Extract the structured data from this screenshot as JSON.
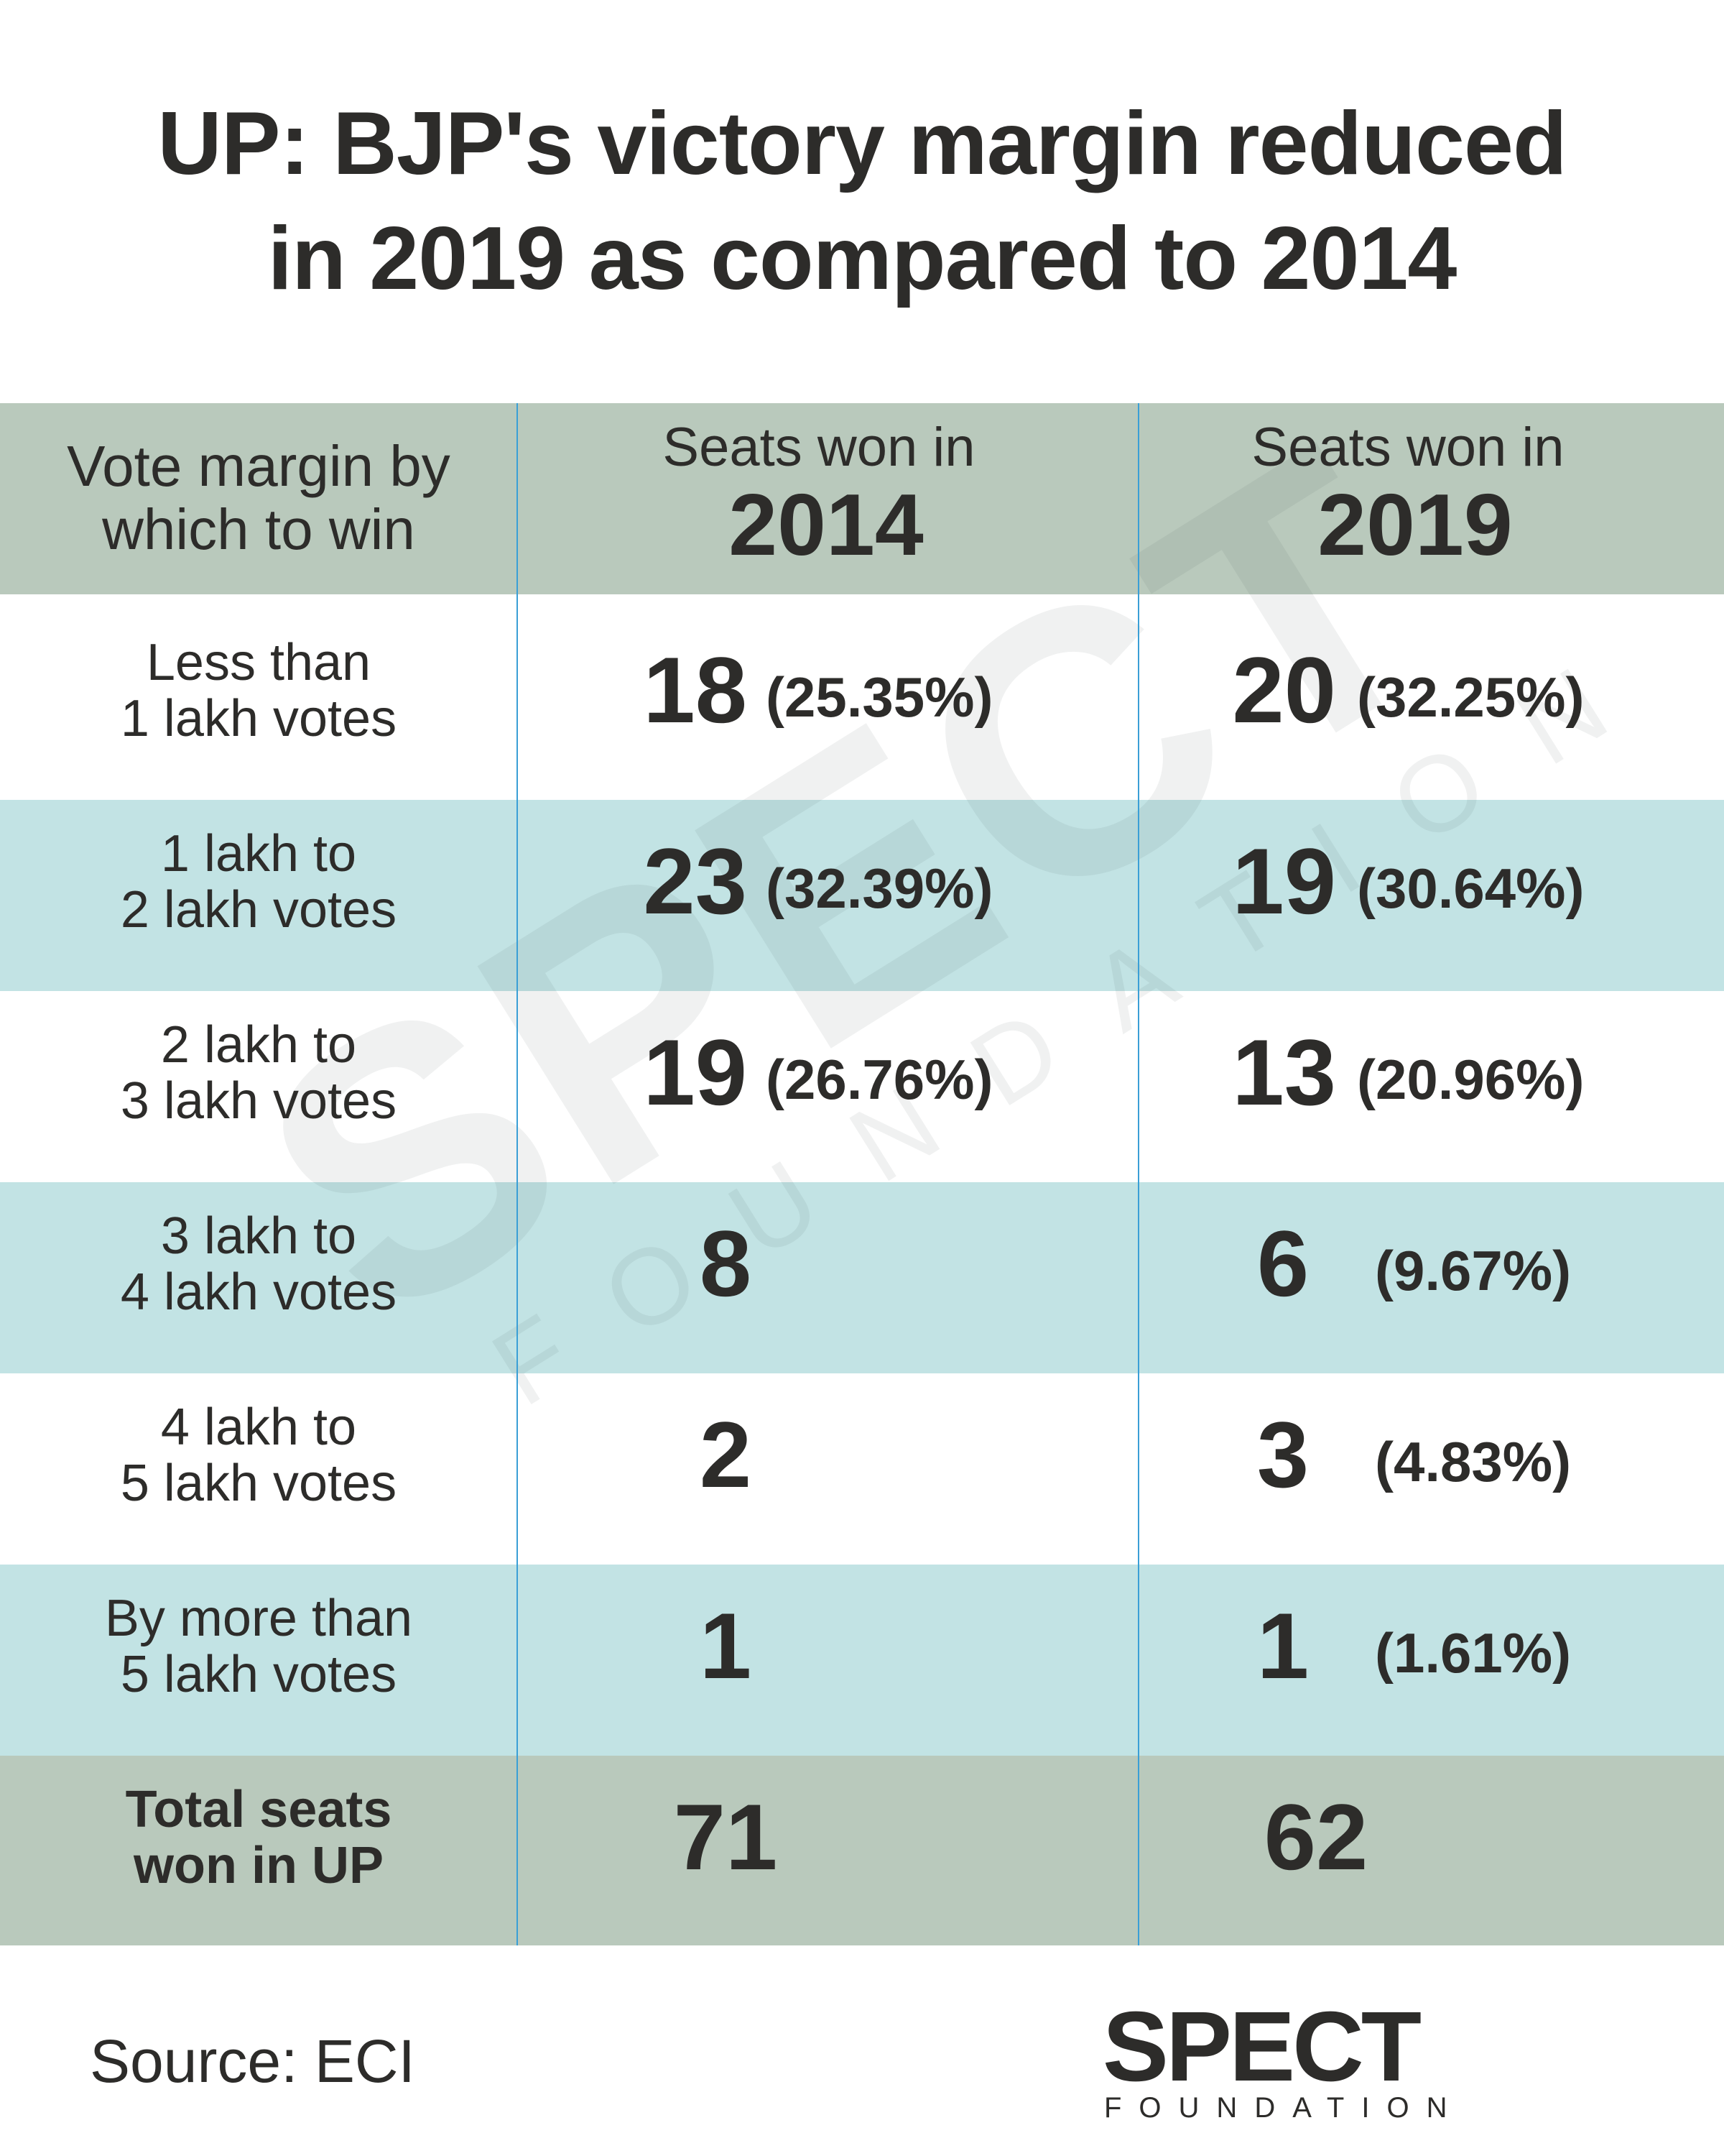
{
  "title": {
    "line1": "UP: BJP's victory margin reduced",
    "line2": "in 2019 as compared to 2014"
  },
  "colors": {
    "header_bg": "#b9c9bc",
    "alt_row_bg": "#c2e3e4",
    "divider": "#3a9fd6",
    "text": "#2d2c2a"
  },
  "table": {
    "headers": [
      {
        "line1": "Vote margin by",
        "line2": "which to win"
      },
      {
        "line1": "Seats won in",
        "line2": "2014"
      },
      {
        "line1": "Seats won in",
        "line2": "2019"
      }
    ],
    "rows": [
      {
        "label1": "Less than",
        "label2": "1 lakh votes",
        "s2014": "18",
        "p2014": "(25.35%)",
        "s2019": "20",
        "p2019": "(32.25%)"
      },
      {
        "label1": "1 lakh to",
        "label2": "2 lakh votes",
        "s2014": "23",
        "p2014": "(32.39%)",
        "s2019": "19",
        "p2019": "(30.64%)"
      },
      {
        "label1": "2 lakh to",
        "label2": "3 lakh votes",
        "s2014": "19",
        "p2014": "(26.76%)",
        "s2019": "13",
        "p2019": "(20.96%)"
      },
      {
        "label1": "3 lakh to",
        "label2": "4 lakh votes",
        "s2014": "8",
        "s2019": "6",
        "p2019": "(9.67%)"
      },
      {
        "label1": "4 lakh to",
        "label2": "5 lakh votes",
        "s2014": "2",
        "s2019": "3",
        "p2019": "(4.83%)"
      },
      {
        "label1": "By more than",
        "label2": "5 lakh votes",
        "s2014": "1",
        "s2019": "1",
        "p2019": "(1.61%)"
      }
    ],
    "total": {
      "label1": "Total seats",
      "label2": "won in UP",
      "s2014": "71",
      "s2019": "62"
    }
  },
  "watermark": {
    "line1": "SPECT",
    "line2": "FOUNDATION"
  },
  "source": "Source: ECI",
  "logo": {
    "line1": "SPECT",
    "line2": "FOUNDATION"
  }
}
